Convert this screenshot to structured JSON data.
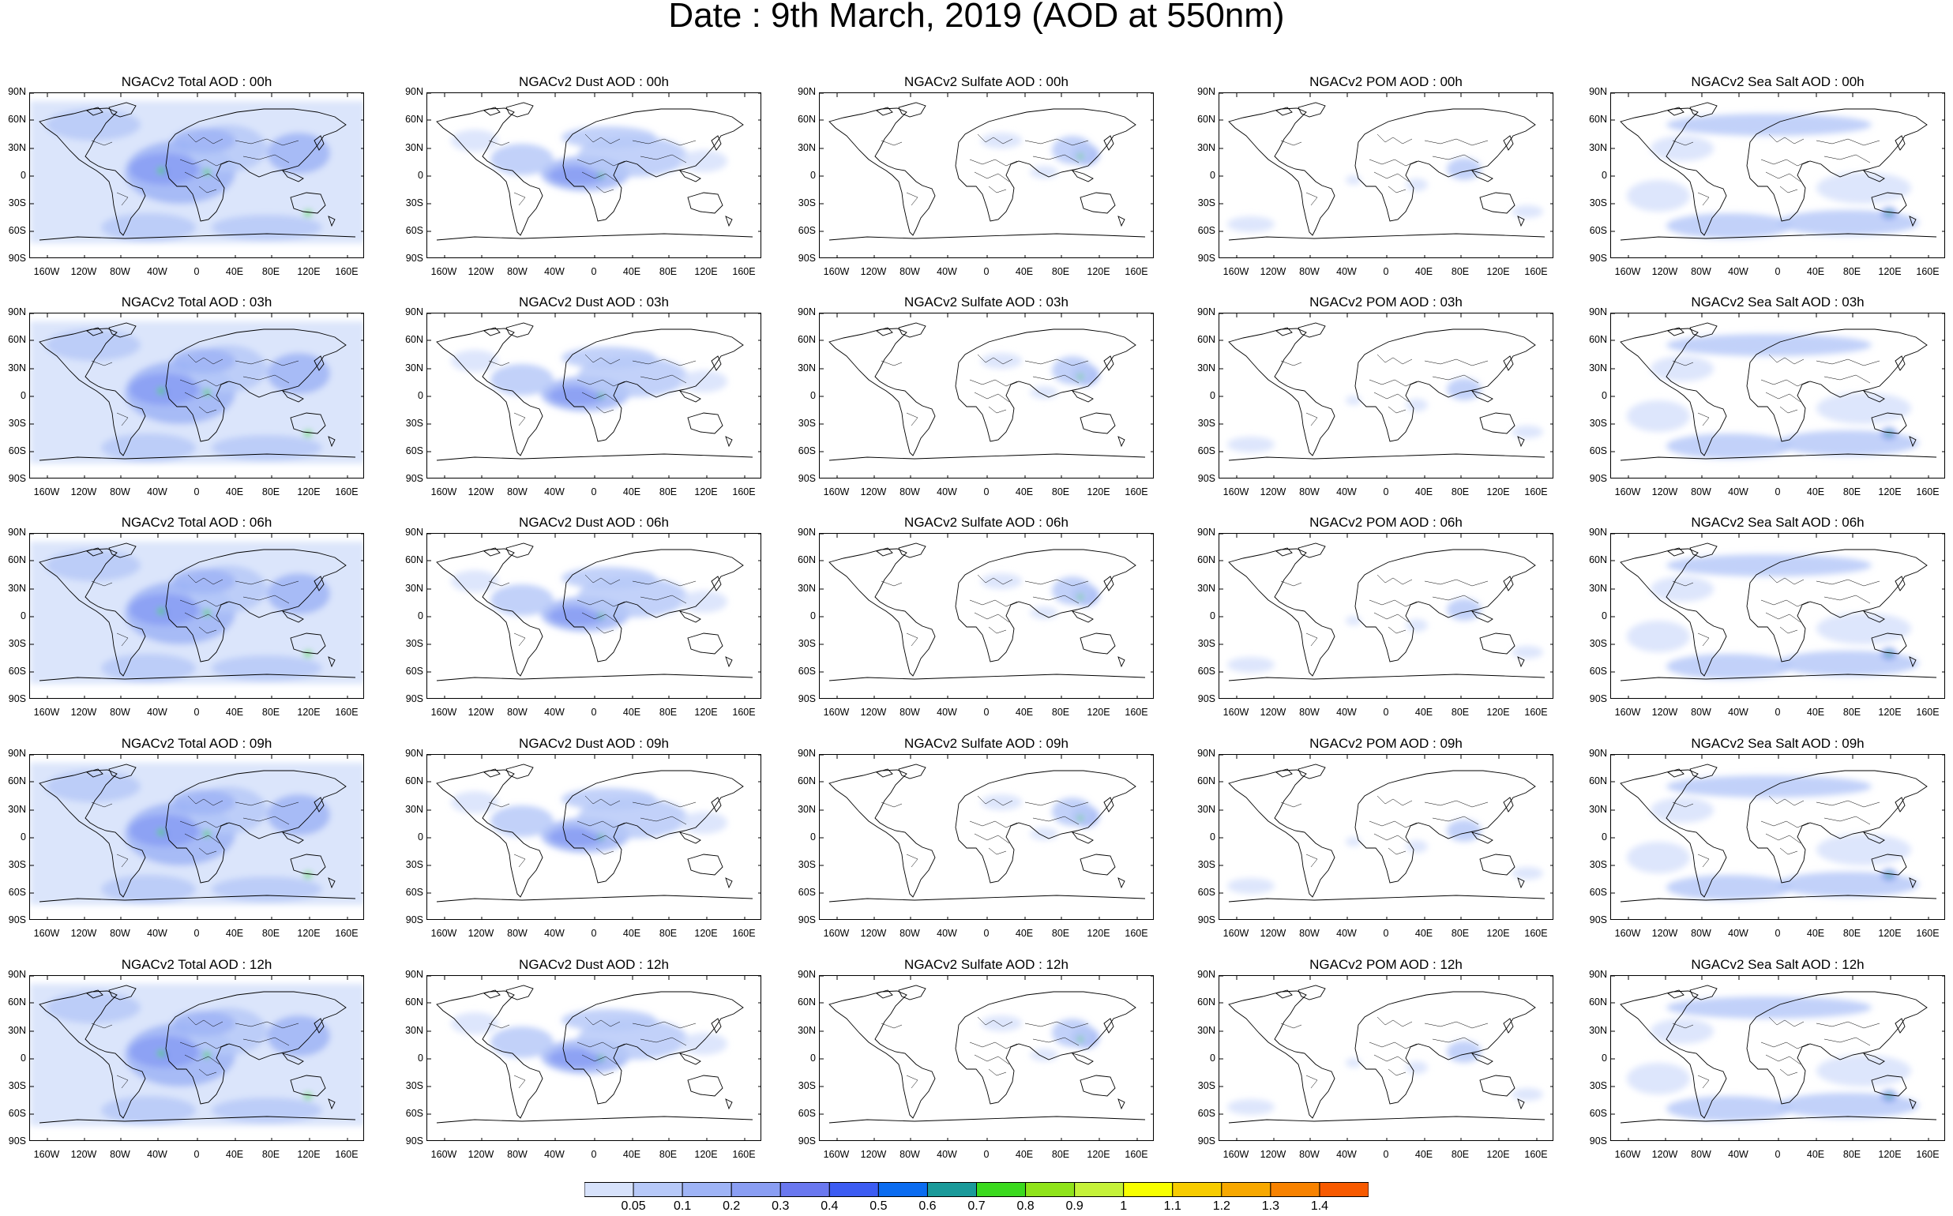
{
  "title": "Date : 9th March, 2019 (AOD at 550nm)",
  "columns": [
    {
      "key": "total",
      "titles": [
        "NGACv2 Total AOD : 00h",
        "NGACv2 Total AOD : 03h",
        "NGACv2 Total AOD : 06h",
        "NGACv2 Total AOD : 09h",
        "NGACv2 Total AOD : 12h"
      ]
    },
    {
      "key": "dust",
      "titles": [
        "NGACv2 Dust AOD : 00h",
        "NGACv2 Dust AOD : 03h",
        "NGACv2 Dust AOD : 06h",
        "NGACv2 Dust AOD : 09h",
        "NGACv2 Dust AOD : 12h"
      ]
    },
    {
      "key": "sulfate",
      "titles": [
        "NGACv2 Sulfate AOD : 00h",
        "NGACv2 Sulfate AOD : 03h",
        "NGACv2 Sulfate AOD : 06h",
        "NGACv2 Sulfate AOD : 09h",
        "NGACv2 Sulfate AOD : 12h"
      ]
    },
    {
      "key": "pom",
      "titles": [
        "NGACv2 POM AOD : 00h",
        "NGACv2 POM AOD : 03h",
        "NGACv2 POM AOD : 06h",
        "NGACv2 POM AOD : 09h",
        "NGACv2 POM  AOD : 12h"
      ]
    },
    {
      "key": "seasalt",
      "titles": [
        "NGACv2 Sea Salt AOD : 00h",
        "NGACv2 Sea Salt AOD : 03h",
        "NGACv2 Sea Salt AOD : 06h",
        "NGACv2 Sea Salt  AOD : 09h",
        "NGACv2 Sea Salt  AOD : 12h"
      ]
    }
  ],
  "lat_ticks": [
    "90N",
    "60N",
    "30N",
    "0",
    "30S",
    "60S",
    "90S"
  ],
  "lon_ticks": [
    "160W",
    "120W",
    "80W",
    "40W",
    "0",
    "40E",
    "80E",
    "120E",
    "160E"
  ],
  "colorbar": {
    "labels": [
      "0.05",
      "0.1",
      "0.2",
      "0.3",
      "0.4",
      "0.5",
      "0.6",
      "0.7",
      "0.8",
      "0.9",
      "1",
      "1.1",
      "1.2",
      "1.3",
      "1.4"
    ],
    "colors": [
      "#ffffff",
      "#d7e2fb",
      "#b7c9f8",
      "#9fb4f6",
      "#8a9ef3",
      "#6a78ef",
      "#3c5cf2",
      "#0b6cf0",
      "#1a9a9a",
      "#3bd91e",
      "#8fe31a",
      "#c5f23a",
      "#f7ff00",
      "#f7cc00",
      "#f7a800",
      "#f78200",
      "#f75a00",
      "#f71c00"
    ]
  }
}
